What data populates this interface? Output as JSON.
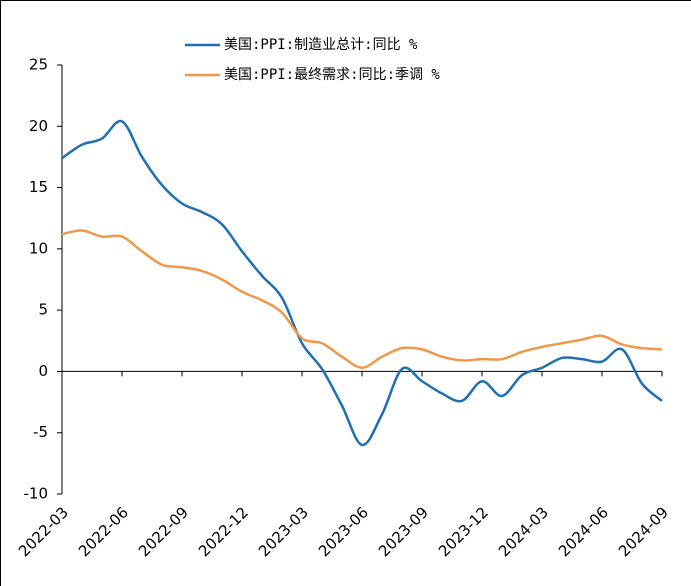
{
  "chart_data": {
    "type": "line",
    "categories": [
      "2022-03",
      null,
      null,
      "2022-06",
      null,
      null,
      "2022-09",
      null,
      null,
      "2022-12",
      null,
      null,
      "2023-03",
      null,
      null,
      "2023-06",
      null,
      null,
      "2023-09",
      null,
      null,
      "2023-12",
      null,
      null,
      "2024-03",
      null,
      null,
      "2024-06",
      null,
      null,
      "2024-09"
    ],
    "series": [
      {
        "name": "美国:PPI:制造业总计:同比 %",
        "color": "#1f6fb5",
        "values": [
          17.4,
          18.5,
          19.0,
          20.4,
          17.5,
          15.2,
          13.7,
          13.0,
          12.0,
          9.8,
          7.8,
          6.0,
          2.3,
          0.2,
          -2.8,
          -6.0,
          -3.5,
          0.2,
          -0.8,
          -1.8,
          -2.4,
          -0.8,
          -2.0,
          -0.3,
          0.3,
          1.1,
          1.0,
          0.8,
          1.8,
          -1.0,
          -2.4
        ]
      },
      {
        "name": "美国:PPI:最终需求:同比:季调 %",
        "color": "#f0984a",
        "values": [
          11.2,
          11.5,
          11.0,
          11.0,
          9.8,
          8.7,
          8.5,
          8.2,
          7.5,
          6.5,
          5.8,
          4.8,
          2.7,
          2.3,
          1.2,
          0.3,
          1.2,
          1.9,
          1.8,
          1.2,
          0.9,
          1.0,
          1.0,
          1.6,
          2.0,
          2.3,
          2.6,
          2.9,
          2.2,
          1.9,
          1.8
        ]
      }
    ],
    "ylim": [
      -10,
      25
    ],
    "yticks": [
      -10,
      -5,
      0,
      5,
      10,
      15,
      20,
      25
    ],
    "grid": false
  }
}
